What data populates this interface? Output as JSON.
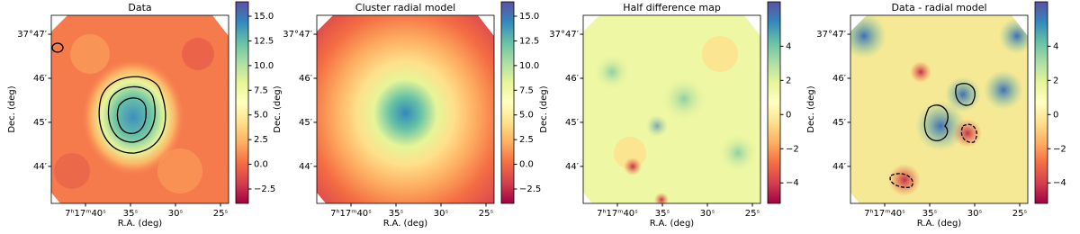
{
  "chart_data": [
    {
      "type": "heatmap",
      "title": "Data",
      "xlabel": "R.A. (deg)",
      "ylabel": "Dec. (deg)",
      "colormap": "Spectral",
      "xlim": [
        43.8,
        24.1
      ],
      "xticks": [
        {
          "value": 40,
          "label": "7ʰ17ᵐ40ˢ"
        },
        {
          "value": 35,
          "label": "35ˢ"
        },
        {
          "value": 30,
          "label": "30ˢ"
        },
        {
          "value": 25,
          "label": "25ˢ"
        }
      ],
      "ylim": [
        43.16,
        47.43
      ],
      "yticks": [
        {
          "value": 47,
          "label": "37°47′"
        },
        {
          "value": 46,
          "label": "46′"
        },
        {
          "value": 45,
          "label": "45′"
        },
        {
          "value": 44,
          "label": "44′"
        }
      ],
      "clim": [
        -3.96,
        16.46
      ],
      "cticks": [
        {
          "value": -2.5,
          "label": "−2.5"
        },
        {
          "value": 0,
          "label": "0.0"
        },
        2.5,
        {
          "value": 5,
          "label": "5.0"
        },
        7.5,
        {
          "value": 10,
          "label": "10.0"
        },
        12.5,
        {
          "value": 15,
          "label": "15.0"
        }
      ]
    },
    {
      "type": "heatmap",
      "title": "Cluster radial model",
      "xlabel": "R.A. (deg)",
      "ylabel": "Dec. (deg)",
      "colormap": "Spectral",
      "xlim": [
        43.8,
        24.1
      ],
      "xticks": [
        {
          "value": 40,
          "label": "7ʰ17ᵐ40ˢ"
        },
        {
          "value": 35,
          "label": "35ˢ"
        },
        {
          "value": 30,
          "label": "30ˢ"
        },
        {
          "value": 25,
          "label": "25ˢ"
        }
      ],
      "ylim": [
        43.16,
        47.43
      ],
      "yticks": [
        {
          "value": 47,
          "label": "37°47′"
        },
        {
          "value": 46,
          "label": "46′"
        },
        {
          "value": 45,
          "label": "45′"
        },
        {
          "value": 44,
          "label": "44′"
        }
      ],
      "clim": [
        -3.96,
        16.46
      ],
      "cticks": [
        {
          "value": -2.5,
          "label": "−2.5"
        },
        {
          "value": 0,
          "label": "0.0"
        },
        2.5,
        {
          "value": 5,
          "label": "5.0"
        },
        7.5,
        {
          "value": 10,
          "label": "10.0"
        },
        12.5,
        {
          "value": 15,
          "label": "15.0"
        }
      ]
    },
    {
      "type": "heatmap",
      "title": "Half difference map",
      "xlabel": "R.A. (deg)",
      "ylabel": "Dec. (deg)",
      "colormap": "Spectral",
      "xlim": [
        43.8,
        24.1
      ],
      "xticks": [
        {
          "value": 40,
          "label": "7ʰ17ᵐ40ˢ"
        },
        {
          "value": 35,
          "label": "35ˢ"
        },
        {
          "value": 30,
          "label": "30ˢ"
        },
        {
          "value": 25,
          "label": "25ˢ"
        }
      ],
      "ylim": [
        43.16,
        47.43
      ],
      "yticks": [
        {
          "value": 47,
          "label": "37°47′"
        },
        {
          "value": 46,
          "label": "46′"
        },
        {
          "value": 45,
          "label": "45′"
        },
        {
          "value": 44,
          "label": "44′"
        }
      ],
      "clim": [
        -5.2,
        6.6
      ],
      "cticks": [
        4,
        2,
        0,
        {
          "value": -2,
          "label": "−2"
        },
        {
          "value": -4,
          "label": "−4"
        }
      ]
    },
    {
      "type": "heatmap",
      "title": "Data - radial model",
      "xlabel": "R.A. (deg)",
      "ylabel": "Dec. (deg)",
      "colormap": "Spectral",
      "xlim": [
        43.8,
        24.1
      ],
      "xticks": [
        {
          "value": 40,
          "label": "7ʰ17ᵐ40ˢ"
        },
        {
          "value": 35,
          "label": "35ˢ"
        },
        {
          "value": 30,
          "label": "30ˢ"
        },
        {
          "value": 25,
          "label": "25ˢ"
        }
      ],
      "ylim": [
        43.16,
        47.43
      ],
      "yticks": [
        {
          "value": 47,
          "label": "37°47′"
        },
        {
          "value": 46,
          "label": "46′"
        },
        {
          "value": 45,
          "label": "45′"
        },
        {
          "value": 44,
          "label": "44′"
        }
      ],
      "clim": [
        -5.2,
        6.6
      ],
      "cticks": [
        4,
        2,
        0,
        {
          "value": -2,
          "label": "−2"
        },
        {
          "value": -4,
          "label": "−4"
        }
      ]
    }
  ]
}
